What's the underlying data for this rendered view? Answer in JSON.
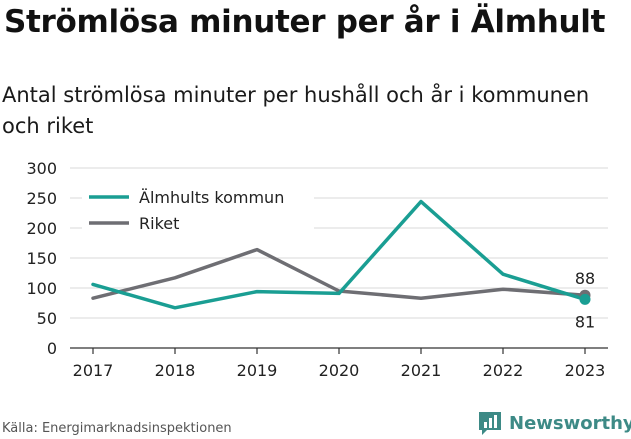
{
  "header": {
    "title": "Strömlösa minuter per år i Älmhult",
    "subtitle": "Antal strömlösa minuter per hushåll och år i kommunen och riket"
  },
  "footer": {
    "source": "Källa: Energimarknadsinspektionen",
    "brand": "Newsworthy"
  },
  "colors": {
    "almhult": "#1a9e93",
    "riket": "#6e6e73",
    "grid": "#d9d9d9",
    "brand": "#3d8a86"
  },
  "chart_data": {
    "type": "line",
    "title": "Strömlösa minuter per år i Älmhult",
    "subtitle": "Antal strömlösa minuter per hushåll och år i kommunen och riket",
    "xlabel": "",
    "ylabel": "",
    "categories": [
      "2017",
      "2018",
      "2019",
      "2020",
      "2021",
      "2022",
      "2023"
    ],
    "yticks": [
      "0",
      "50",
      "100",
      "150",
      "200",
      "250",
      "300"
    ],
    "ylim": [
      0,
      300
    ],
    "grid": true,
    "legend": "top-left",
    "series": [
      {
        "name": "Älmhults kommun",
        "values": [
          106,
          67,
          94,
          91,
          244,
          123,
          81
        ],
        "end_label": "81"
      },
      {
        "name": "Riket",
        "values": [
          83,
          117,
          164,
          95,
          83,
          98,
          88
        ],
        "end_label": "88"
      }
    ]
  }
}
